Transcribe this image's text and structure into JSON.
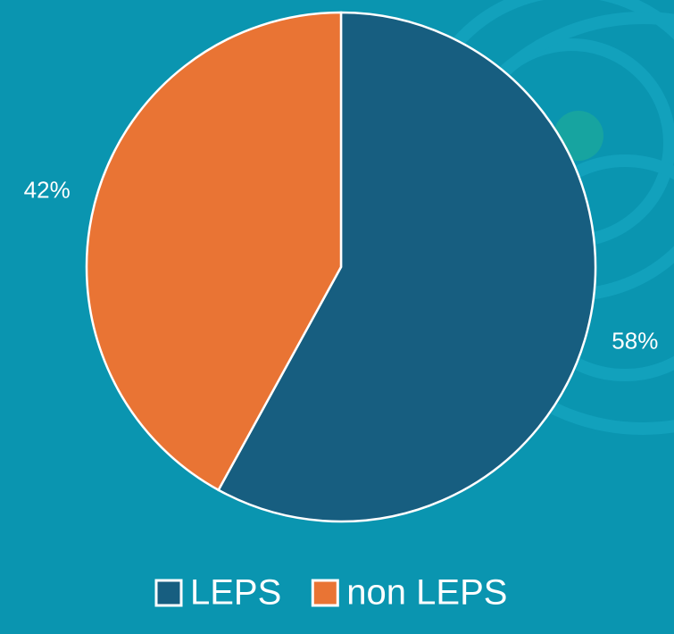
{
  "chart_data": {
    "type": "pie",
    "categories": [
      "LEPS",
      "non LEPS"
    ],
    "values": [
      58,
      42
    ],
    "value_labels": [
      "58%",
      "42%"
    ],
    "colors": [
      "#175e80",
      "#e97434"
    ]
  }
}
